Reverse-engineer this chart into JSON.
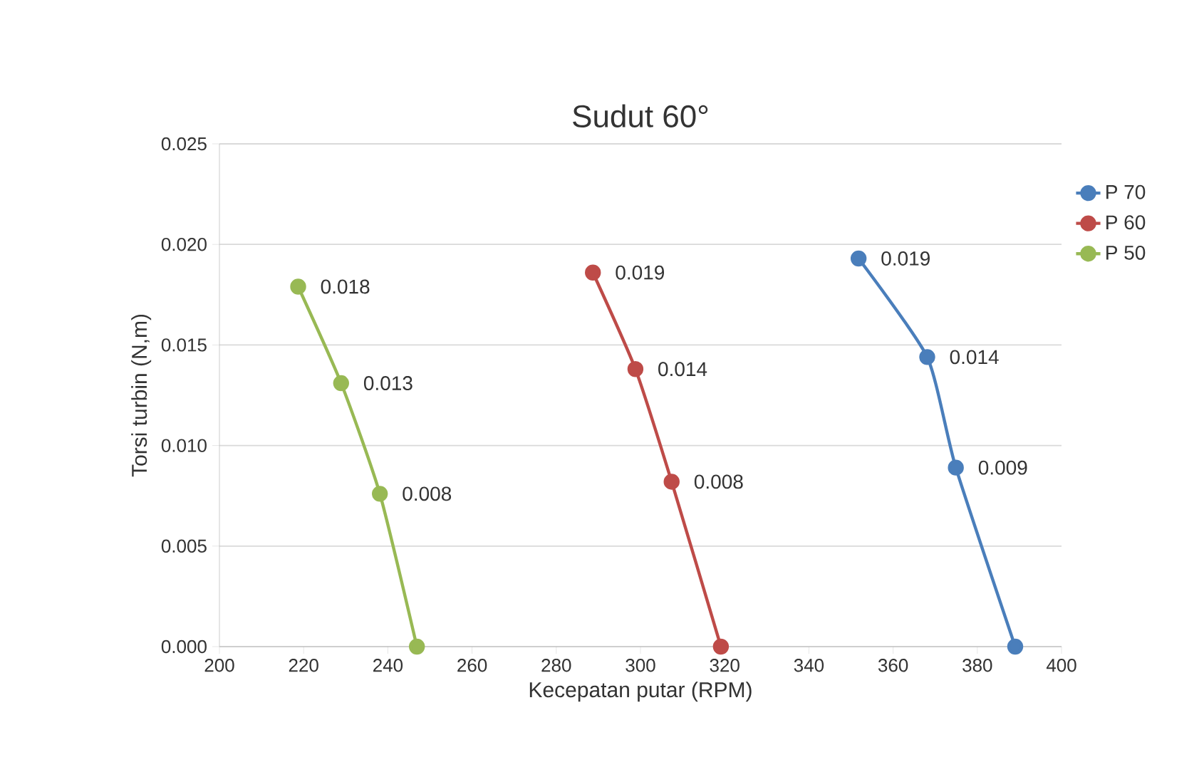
{
  "chart_data": {
    "type": "line",
    "title": "Sudut 60°",
    "xlabel": "Kecepatan putar (RPM)",
    "ylabel": "Torsi turbin (N,m)",
    "series": [
      {
        "name": "P 70",
        "color": "#4a7ebb",
        "x": [
          351.8,
          368.1,
          374.9,
          389.0
        ],
        "values": [
          0.0193,
          0.0144,
          0.0089,
          0.0
        ],
        "value_labels": [
          "0.019",
          "0.014",
          "0.009",
          null
        ]
      },
      {
        "name": "P 60",
        "color": "#be4b48",
        "x": [
          288.7,
          298.8,
          307.4,
          319.1
        ],
        "values": [
          0.0186,
          0.0138,
          0.0082,
          0.0
        ],
        "value_labels": [
          "0.019",
          "0.014",
          "0.008",
          null
        ]
      },
      {
        "name": "P 50",
        "color": "#98b954",
        "x": [
          218.7,
          228.9,
          238.1,
          246.9
        ],
        "values": [
          0.0179,
          0.0131,
          0.0076,
          0.0
        ],
        "value_labels": [
          "0.018",
          "0.013",
          "0.008",
          null
        ]
      }
    ],
    "xlim": [
      200,
      400
    ],
    "xticks": [
      200,
      220,
      240,
      260,
      280,
      300,
      320,
      340,
      360,
      380,
      400
    ],
    "ylim": [
      0,
      0.025
    ],
    "yticks": [
      {
        "value": 0,
        "label": "0.000"
      },
      {
        "value": 0.005,
        "label": "0.005"
      },
      {
        "value": 0.01,
        "label": "0.010"
      },
      {
        "value": 0.015,
        "label": "0.015"
      },
      {
        "value": 0.02,
        "label": "0.020"
      },
      {
        "value": 0.025,
        "label": "0.025"
      }
    ],
    "grid": "y",
    "legend": "right",
    "marker": "circle",
    "line_style": "solid"
  }
}
